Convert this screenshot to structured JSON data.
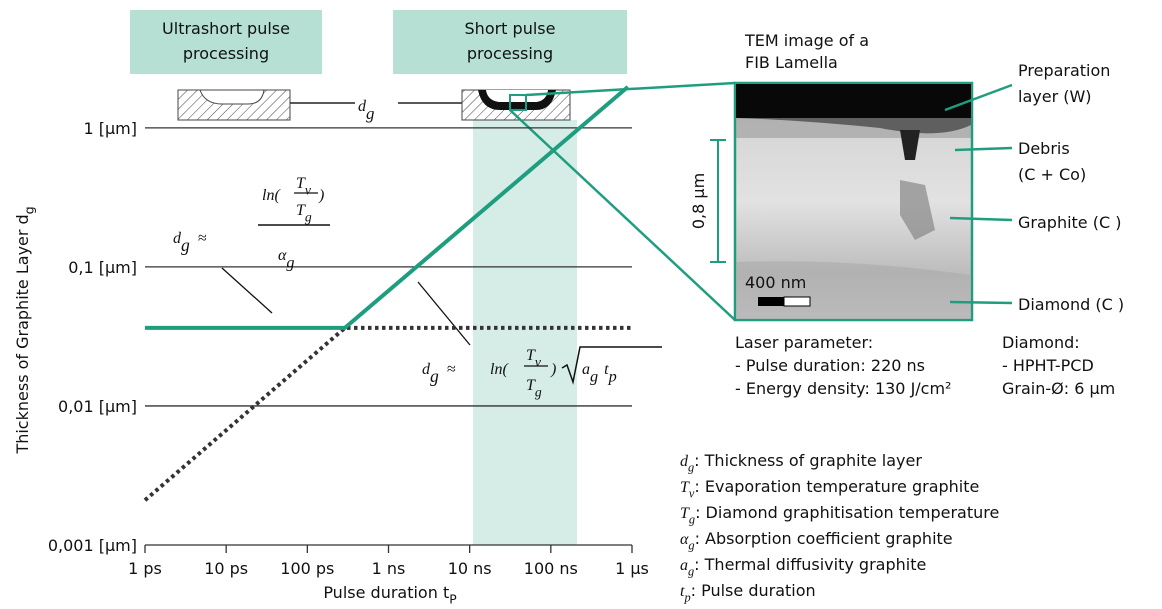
{
  "chart_data": {
    "type": "line",
    "log_x": true,
    "log_y": true,
    "grid": true,
    "xlim": [
      1e-12,
      1e-06
    ],
    "ylim": [
      0.001,
      2
    ],
    "xticks": [
      {
        "value": 1e-12,
        "label": "1 ps"
      },
      {
        "value": 1e-11,
        "label": "10 ps"
      },
      {
        "value": 1e-10,
        "label": "100 ps"
      },
      {
        "value": 1e-09,
        "label": "1 ns"
      },
      {
        "value": 1e-08,
        "label": "10 ns"
      },
      {
        "value": 1e-07,
        "label": "100 ns"
      },
      {
        "value": 1e-06,
        "label": "1 µs"
      }
    ],
    "yticks": [
      {
        "value": 0.001,
        "label": "0,001 [µm]"
      },
      {
        "value": 0.01,
        "label": "0,01 [µm]"
      },
      {
        "value": 0.1,
        "label": "0,1 [µm]"
      },
      {
        "value": 1,
        "label": "1 [µm]"
      }
    ],
    "x_label": "Pulse duration t",
    "x_label_sub": "P",
    "y_label": "Thickness of Graphite Layer d",
    "y_label_sub": "g",
    "shaded_xrange": [
      1.1e-08,
      2.1e-07
    ],
    "shade_color": "#d5ede6",
    "series": [
      {
        "style": "solid",
        "color": "#1f9e7f",
        "x": [
          1e-12,
          2.9e-10,
          8.9e-07
        ],
        "values": [
          0.0364,
          0.0364,
          1.97
        ]
      },
      {
        "style": "dotted",
        "color": "#333333",
        "x": [
          1e-12,
          2.9e-10,
          1e-06
        ],
        "values": [
          0.0021,
          0.0364,
          0.0364
        ]
      }
    ],
    "regions": [
      {
        "lines": [
          "Ultrashort pulse",
          "processing"
        ]
      },
      {
        "lines": [
          "Short pulse",
          "processing"
        ]
      }
    ],
    "dg_label": {
      "sym": "d",
      "sub": "g"
    },
    "formula_1": {
      "lhs": "d",
      "lhs_sub": "g",
      "approx": "≈",
      "ln": "ln(",
      "num": "T",
      "num_sub": "v",
      "den": "T",
      "den_sub": "g",
      "close": ")",
      "denom": "α",
      "denom_sub": "g"
    },
    "formula_2": {
      "lhs": "d",
      "lhs_sub": "g",
      "approx": "≈",
      "ln": "ln(",
      "num": "T",
      "num_sub": "v",
      "den": "T",
      "den_sub": "g",
      "close": ")",
      "a": "a",
      "a_sub": "g",
      "t": "t",
      "t_sub": "p"
    },
    "tem": {
      "title": [
        "TEM image of a",
        "FIB Lamella"
      ],
      "thickness": "0,8 µm",
      "scale": "400 nm",
      "labels": [
        {
          "lines": [
            "Preparation",
            "layer (W)"
          ]
        },
        {
          "lines": [
            "Debris",
            "(C + Co)"
          ]
        },
        {
          "lines": [
            "Graphite (C )"
          ]
        },
        {
          "lines": [
            "Diamond (C )"
          ]
        }
      ],
      "laser": [
        "Laser parameter:",
        "-   Pulse duration: 220 ns",
        "-   Energy density: 130 J/cm²"
      ],
      "diamond": [
        "Diamond:",
        "-    HPHT-PCD",
        "      Grain-Ø: 6 µm"
      ]
    },
    "legend": [
      {
        "sym": "d",
        "sub": "g",
        "text": ": Thickness of graphite layer"
      },
      {
        "sym": "T",
        "sub": "v",
        "text": ": Evaporation temperature graphite"
      },
      {
        "sym": "T",
        "sub": "g",
        "text": ": Diamond graphitisation temperature"
      },
      {
        "sym": "α",
        "sub": "g",
        "text": ": Absorption coefficient graphite"
      },
      {
        "sym": "a",
        "sub": "g",
        "text": ": Thermal diffusivity graphite"
      },
      {
        "sym": "t",
        "sub": "p",
        "text": ": Pulse duration"
      }
    ]
  }
}
